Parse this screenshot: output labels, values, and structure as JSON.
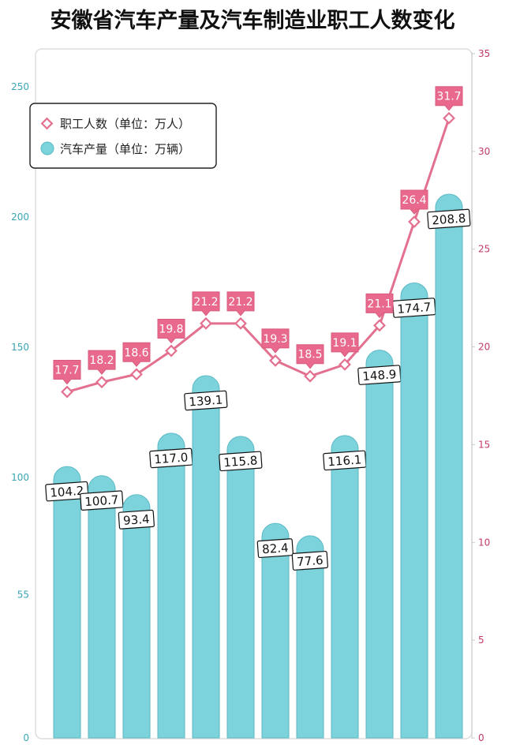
{
  "title": "安徽省汽车产量及汽车制造业职工人数变化",
  "colors": {
    "bar": "#7dd3dc",
    "bar_cap": "#8fdde4",
    "line": "#e3708f",
    "line_label_bg": "#e8698c",
    "left_axis": "#3aa6b5",
    "right_axis": "#c23a6b",
    "frame": "#dddddd"
  },
  "chart_data": {
    "type": "bar",
    "legend_position": "top-left",
    "grid": false,
    "categories": [
      "",
      "",
      "",
      "",
      "",
      "",
      "",
      "",
      "",
      "",
      "",
      ""
    ],
    "left_axis": {
      "ticks": [
        0,
        55,
        100,
        150,
        200,
        250
      ],
      "tick_labels": [
        "0",
        "55",
        "100",
        "150",
        "200",
        "250"
      ],
      "range": [
        0,
        250
      ]
    },
    "right_axis": {
      "ticks": [
        0,
        5,
        10,
        15,
        20,
        25,
        30,
        35
      ],
      "tick_labels": [
        "0",
        "5",
        "10",
        "15",
        "20",
        "25",
        "30",
        "35"
      ],
      "range": [
        0,
        35
      ]
    },
    "series": [
      {
        "name": "汽车产量（单位：万辆）",
        "type": "bar",
        "axis": "left",
        "values": [
          104.2,
          100.7,
          93.4,
          117.0,
          139.1,
          115.8,
          82.4,
          77.6,
          116.1,
          148.9,
          174.7,
          208.8
        ],
        "labels": [
          "104.2",
          "100.7",
          "93.4",
          "117.0",
          "139.1",
          "115.8",
          "82.4",
          "77.6",
          "116.1",
          "148.9",
          "174.7",
          "208.8"
        ]
      },
      {
        "name": "职工人数（单位：万人）",
        "type": "line",
        "axis": "right",
        "values": [
          17.7,
          18.2,
          18.6,
          19.8,
          21.2,
          21.2,
          19.3,
          18.5,
          19.1,
          21.1,
          26.4,
          31.7
        ],
        "labels": [
          "17.7",
          "18.2",
          "18.6",
          "19.8",
          "21.2",
          "21.2",
          "19.3",
          "18.5",
          "19.1",
          "21.1",
          "26.4",
          "31.7"
        ]
      }
    ]
  }
}
